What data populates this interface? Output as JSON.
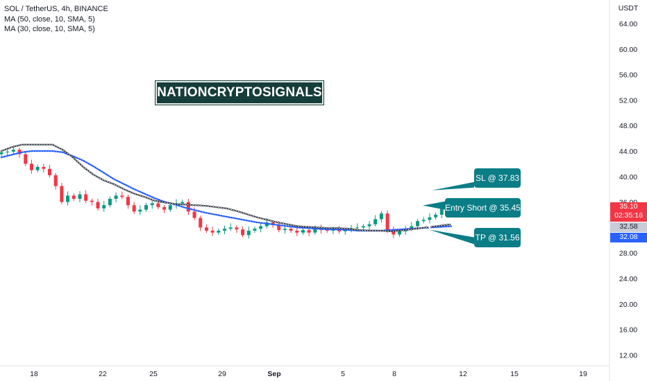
{
  "chart_data": {
    "type": "candlestick",
    "title": "SOL / TetherUS, 4h, BINANCE",
    "indicators": [
      {
        "name": "MA (50, close, 10, SMA, 5)",
        "color": "#ffffff"
      },
      {
        "name": "MA (30, close, 10, SMA, 5)",
        "color": "#2962ff"
      }
    ],
    "y_axis": {
      "unit_label": "USDT",
      "ylim": [
        11.2,
        66.0
      ],
      "ticks": [
        "64.00",
        "60.00",
        "56.00",
        "52.00",
        "48.00",
        "44.00",
        "40.00",
        "36.00",
        "32.00",
        "28.00",
        "24.00",
        "20.00",
        "16.00",
        "12.00"
      ]
    },
    "x_axis": {
      "ticks": [
        "18",
        "22",
        "25",
        "29",
        "Sep",
        "5",
        "8",
        "12",
        "15",
        "19"
      ]
    },
    "close_series_sampled": [
      43.8,
      43.9,
      44.2,
      43.5,
      42.0,
      41.0,
      41.5,
      41.2,
      40.2,
      38.5,
      36.0,
      37.0,
      36.5,
      37.2,
      36.2,
      36.0,
      35.0,
      35.5,
      36.5,
      37.0,
      36.8,
      35.5,
      34.5,
      34.8,
      35.5,
      35.8,
      35.2,
      34.8,
      35.5,
      35.8,
      36.0,
      34.5,
      33.5,
      32.0,
      31.5,
      31.2,
      31.5,
      31.8,
      32.0,
      31.7,
      30.8,
      31.5,
      31.8,
      32.2,
      32.8,
      32.5,
      31.6,
      31.8,
      31.5,
      31.2,
      31.6,
      31.2,
      31.8,
      31.6,
      31.5,
      31.6,
      31.4,
      31.6,
      31.9,
      32.0,
      32.2,
      32.5,
      33.3,
      34.2,
      31.5,
      30.9,
      31.4,
      31.8,
      32.2,
      33.0,
      33.2,
      33.6,
      34.0,
      35.0,
      35.4
    ],
    "ma50_points": [
      44.0,
      44.6,
      45.0,
      45.0,
      45.0,
      45.0,
      44.2,
      43.0,
      41.5,
      40.3,
      39.4,
      38.8,
      38.0,
      37.3,
      36.8,
      36.2,
      35.9,
      35.7,
      35.6,
      35.5,
      35.4,
      35.2,
      35.0,
      34.6,
      34.1,
      33.6,
      33.2,
      32.8,
      32.5,
      32.2,
      32.1,
      32.0,
      31.9,
      31.9,
      31.8,
      31.6,
      31.5,
      31.5,
      31.4,
      31.5,
      31.7,
      31.9,
      32.1,
      32.3,
      32.5
    ],
    "ma30_points": [
      43.0,
      43.4,
      43.8,
      44.0,
      44.0,
      44.0,
      43.8,
      43.2,
      42.5,
      41.6,
      40.6,
      39.6,
      38.8,
      38.0,
      37.3,
      36.6,
      36.0,
      35.6,
      35.1,
      34.7,
      34.3,
      34.0,
      33.7,
      33.4,
      33.1,
      32.8,
      32.6,
      32.4,
      32.2,
      32.0,
      31.9,
      31.8,
      31.7,
      31.7,
      31.6,
      31.5,
      31.5,
      31.5,
      31.6,
      31.7,
      31.8,
      31.9,
      32.0,
      32.1,
      32.2
    ],
    "annotations": [
      {
        "label": "SL @ 37.83",
        "price": 37.83
      },
      {
        "label": "Entry Short @ 35.45",
        "price": 35.45
      },
      {
        "label": "TP @ 31.56",
        "price": 31.56
      }
    ],
    "price_labels": [
      {
        "value": "35.10",
        "sub": "02:35:16",
        "color": "#f23645"
      },
      {
        "value": "32.58",
        "color": "#c9cbd8"
      },
      {
        "value": "32.08",
        "color": "#2962ff"
      }
    ],
    "colors": {
      "up": "#089981",
      "down": "#f23645",
      "ma50": "#ffffff",
      "ma30": "#2962ff",
      "callout": "#0b7d86",
      "watermark_bg": "#163d3a"
    }
  },
  "watermark": "NATIONCRYPTOSIGNALS"
}
